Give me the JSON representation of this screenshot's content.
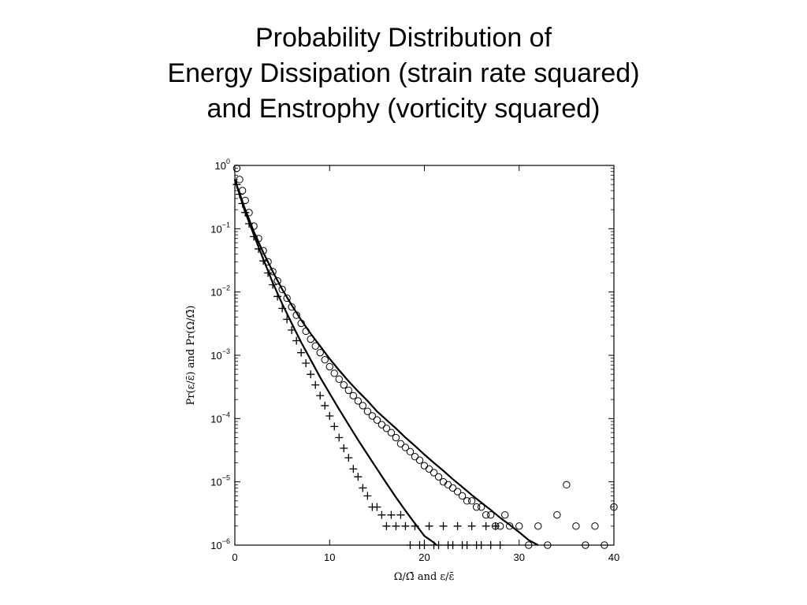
{
  "title": {
    "line1": "Probability Distribution of",
    "line2": "Energy Dissipation (strain rate squared)",
    "line3": "and Enstrophy (vorticity squared)"
  },
  "chart_data": {
    "type": "scatter",
    "title": "Probability Distribution of Energy Dissipation (strain rate squared) and Enstrophy (vorticity squared)",
    "xlabel": "Ω/Ω̄  and  ε/ε̄",
    "ylabel": "Pr(ε/ε̄)  and  Pr(Ω/Ω̄)",
    "xlim": [
      0,
      40
    ],
    "ylim": [
      1e-06,
      1
    ],
    "yscale": "log",
    "grid": false,
    "x_ticks": [
      "0",
      "10",
      "20",
      "30",
      "40"
    ],
    "y_ticks": [
      {
        "base": "10",
        "exp": "0"
      },
      {
        "base": "10",
        "exp": "−1"
      },
      {
        "base": "10",
        "exp": "−2"
      },
      {
        "base": "10",
        "exp": "−3"
      },
      {
        "base": "10",
        "exp": "−4"
      },
      {
        "base": "10",
        "exp": "−5"
      },
      {
        "base": "10",
        "exp": "−6"
      }
    ],
    "series": [
      {
        "marker": "plus",
        "x": [
          0.2,
          0.5,
          0.8,
          1.1,
          1.5,
          2,
          2.5,
          3,
          3.5,
          4,
          4.5,
          5,
          5.5,
          6,
          6.5,
          7,
          7.5,
          8,
          8.5,
          9,
          9.5,
          10,
          10.5,
          11,
          11.5,
          12,
          12.5,
          13,
          13.5,
          14,
          14.5,
          15,
          15.5,
          16,
          16.5,
          17,
          17.5,
          18,
          18.5,
          19,
          19.5,
          20,
          20.5,
          21,
          21.5,
          22,
          22.5,
          23,
          23.5,
          24,
          24.5,
          25,
          25.5,
          26,
          26.5,
          27,
          27.5,
          28
        ],
        "y": [
          0.5,
          0.35,
          0.25,
          0.18,
          0.12,
          0.075,
          0.048,
          0.031,
          0.02,
          0.013,
          0.0085,
          0.0055,
          0.0037,
          0.0025,
          0.0017,
          0.0011,
          0.00075,
          0.0005,
          0.00034,
          0.00023,
          0.00016,
          0.00011,
          7.5e-05,
          5e-05,
          3.4e-05,
          2.4e-05,
          1.6e-05,
          1.2e-05,
          8e-06,
          6e-06,
          4e-06,
          4e-06,
          3e-06,
          2e-06,
          3e-06,
          2e-06,
          3e-06,
          2e-06,
          1e-06,
          2e-06,
          1e-06,
          1e-06,
          2e-06,
          1e-06,
          1e-06,
          2e-06,
          1e-06,
          1e-06,
          2e-06,
          1e-06,
          1e-06,
          2e-06,
          1e-06,
          1e-06,
          2e-06,
          1e-06,
          2e-06,
          1e-06
        ]
      },
      {
        "marker": "circle",
        "x": [
          0.2,
          0.5,
          0.8,
          1.1,
          1.5,
          2,
          2.5,
          3,
          3.5,
          4,
          4.5,
          5,
          5.5,
          6,
          6.5,
          7,
          7.5,
          8,
          8.5,
          9,
          9.5,
          10,
          10.5,
          11,
          11.5,
          12,
          12.5,
          13,
          13.5,
          14,
          14.5,
          15,
          15.5,
          16,
          16.5,
          17,
          17.5,
          18,
          18.5,
          19,
          19.5,
          20,
          20.5,
          21,
          21.5,
          22,
          22.5,
          23,
          23.5,
          24,
          24.5,
          25,
          25.5,
          26,
          26.5,
          27,
          27.5,
          28,
          28.5,
          29,
          30,
          31,
          32,
          33,
          34,
          35,
          36,
          37,
          38,
          39,
          40
        ],
        "y": [
          0.9,
          0.6,
          0.4,
          0.28,
          0.18,
          0.11,
          0.07,
          0.045,
          0.03,
          0.021,
          0.015,
          0.011,
          0.008,
          0.0058,
          0.0043,
          0.0032,
          0.0024,
          0.0018,
          0.0014,
          0.0011,
          0.00085,
          0.00066,
          0.00052,
          0.00042,
          0.00034,
          0.00028,
          0.00023,
          0.00019,
          0.00016,
          0.00013,
          0.00011,
          9.5e-05,
          8e-05,
          7e-05,
          6e-05,
          5e-05,
          4e-05,
          3.5e-05,
          3e-05,
          2.5e-05,
          2.2e-05,
          1.8e-05,
          1.6e-05,
          1.4e-05,
          1.2e-05,
          1e-05,
          9e-06,
          8e-06,
          7e-06,
          6e-06,
          5e-06,
          5e-06,
          4e-06,
          4e-06,
          3e-06,
          3e-06,
          2e-06,
          2e-06,
          3e-06,
          2e-06,
          2e-06,
          1e-06,
          2e-06,
          1e-06,
          3e-06,
          9e-06,
          2e-06,
          1e-06,
          2e-06,
          1e-06,
          4e-06
        ]
      }
    ],
    "fit_lines": [
      {
        "x": [
          0,
          1,
          2,
          3,
          4,
          5,
          6,
          7,
          8,
          9,
          10,
          11,
          12,
          13,
          14,
          15,
          16,
          17,
          18,
          19,
          20,
          21,
          21.3
        ],
        "y": [
          0.6,
          0.2,
          0.08,
          0.033,
          0.014,
          0.0065,
          0.0032,
          0.0016,
          0.00085,
          0.00045,
          0.00025,
          0.00014,
          8e-05,
          4.6e-05,
          2.7e-05,
          1.6e-05,
          9.5e-06,
          5.7e-06,
          3.5e-06,
          2.2e-06,
          1.4e-06,
          1.1e-06,
          1e-06
        ]
      },
      {
        "x": [
          0,
          1,
          2,
          3,
          4,
          5,
          6,
          7,
          8,
          9,
          10,
          11,
          12,
          13,
          14,
          15,
          16,
          17,
          18,
          19,
          20,
          21,
          22,
          23,
          24,
          25,
          26,
          27,
          28,
          29,
          30,
          31,
          32
        ],
        "y": [
          0.6,
          0.22,
          0.09,
          0.042,
          0.021,
          0.011,
          0.0062,
          0.0036,
          0.0022,
          0.0014,
          0.00088,
          0.00058,
          0.00039,
          0.00027,
          0.00019,
          0.00013,
          9.5e-05,
          7e-05,
          5e-05,
          3.7e-05,
          2.7e-05,
          2e-05,
          1.5e-05,
          1.1e-05,
          8.3e-06,
          6.2e-06,
          4.7e-06,
          3.6e-06,
          2.7e-06,
          2.1e-06,
          1.6e-06,
          1.2e-06,
          1e-06
        ]
      }
    ]
  }
}
